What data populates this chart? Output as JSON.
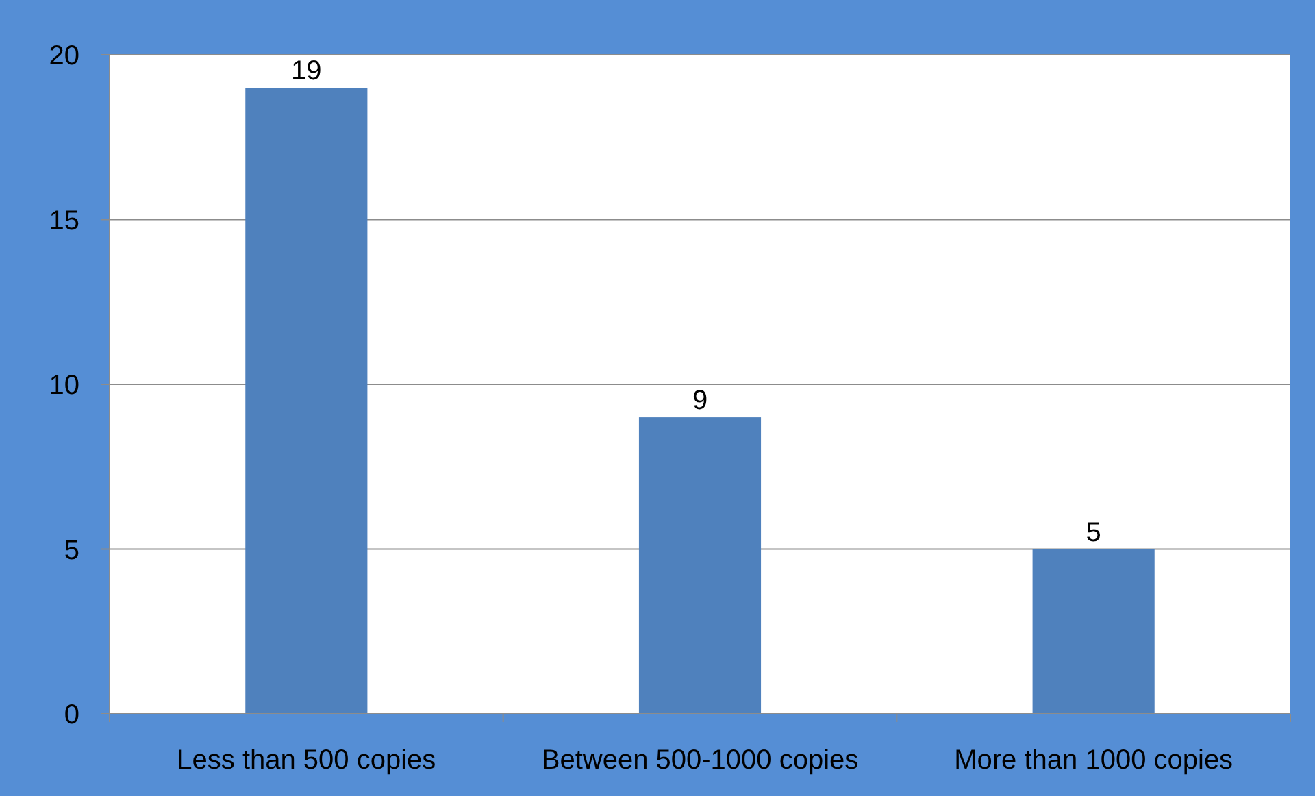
{
  "chart_data": {
    "type": "bar",
    "categories": [
      "Less than 500 copies",
      "Between 500-1000 copies",
      "More than 1000 copies"
    ],
    "values": [
      19,
      9,
      5
    ],
    "color": "#4f81bd",
    "ylim": [
      0,
      20
    ],
    "yticks": [
      0,
      5,
      10,
      15,
      20
    ],
    "grid": "y",
    "data_labels": true
  }
}
